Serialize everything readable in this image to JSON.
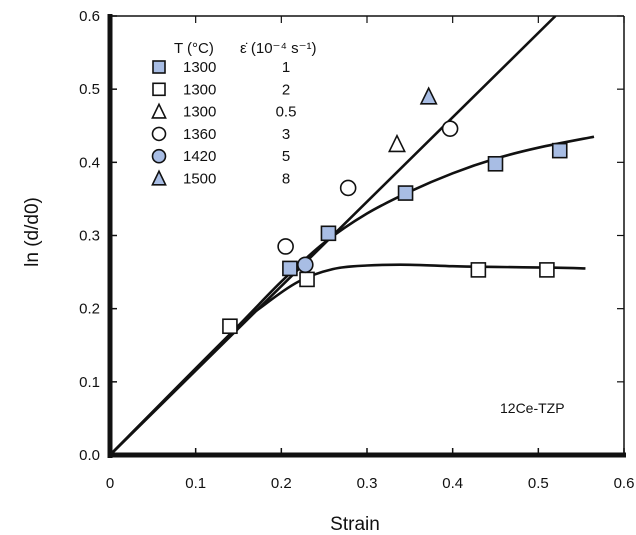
{
  "chart_data": {
    "type": "scatter",
    "xlabel": "Strain",
    "ylabel": "ln (d/d0)",
    "xlim": [
      0,
      0.6
    ],
    "ylim": [
      0,
      0.6
    ],
    "x_ticks": [
      "0",
      "0.1",
      "0.2",
      "0.3",
      "0.4",
      "0.5",
      "0.6"
    ],
    "y_ticks": [
      "0.0",
      "0.1",
      "0.2",
      "0.3",
      "0.4",
      "0.5",
      "0.6"
    ],
    "grid": false,
    "legend": {
      "position": "top-left",
      "header_temp": "T (°C)",
      "header_rate": "ε̇ (10⁻⁴ s⁻¹)"
    },
    "annotation": "12Ce-TZP",
    "series": [
      {
        "marker": "square",
        "filled": true,
        "temp": "1300",
        "rate": "1",
        "points": [
          [
            0.21,
            0.255
          ],
          [
            0.255,
            0.303
          ],
          [
            0.345,
            0.358
          ],
          [
            0.45,
            0.398
          ],
          [
            0.525,
            0.416
          ]
        ]
      },
      {
        "marker": "square",
        "filled": false,
        "temp": "1300",
        "rate": "2",
        "points": [
          [
            0.14,
            0.176
          ],
          [
            0.23,
            0.24
          ],
          [
            0.43,
            0.253
          ],
          [
            0.51,
            0.253
          ]
        ]
      },
      {
        "marker": "triangle",
        "filled": false,
        "temp": "1300",
        "rate": "0.5",
        "points": [
          [
            0.335,
            0.425
          ]
        ]
      },
      {
        "marker": "circle",
        "filled": false,
        "temp": "1360",
        "rate": "3",
        "points": [
          [
            0.205,
            0.285
          ],
          [
            0.278,
            0.365
          ],
          [
            0.397,
            0.446
          ]
        ]
      },
      {
        "marker": "circle",
        "filled": true,
        "temp": "1420",
        "rate": "5",
        "points": [
          [
            0.228,
            0.26
          ]
        ]
      },
      {
        "marker": "triangle",
        "filled": true,
        "temp": "1500",
        "rate": "8",
        "points": [
          [
            0.372,
            0.49
          ]
        ]
      }
    ],
    "lines": [
      {
        "name": "ideal",
        "points": [
          [
            0,
            0
          ],
          [
            0.52,
            0.6
          ]
        ]
      },
      {
        "name": "upper-fit",
        "points": [
          [
            0,
            0
          ],
          [
            0.14,
            0.165
          ],
          [
            0.2,
            0.237
          ],
          [
            0.25,
            0.29
          ],
          [
            0.3,
            0.33
          ],
          [
            0.35,
            0.36
          ],
          [
            0.4,
            0.385
          ],
          [
            0.45,
            0.405
          ],
          [
            0.5,
            0.42
          ],
          [
            0.565,
            0.435
          ]
        ]
      },
      {
        "name": "lower-fit",
        "points": [
          [
            0,
            0
          ],
          [
            0.14,
            0.165
          ],
          [
            0.18,
            0.205
          ],
          [
            0.22,
            0.237
          ],
          [
            0.26,
            0.254
          ],
          [
            0.3,
            0.259
          ],
          [
            0.35,
            0.26
          ],
          [
            0.4,
            0.258
          ],
          [
            0.45,
            0.257
          ],
          [
            0.52,
            0.256
          ],
          [
            0.555,
            0.255
          ]
        ]
      }
    ],
    "colors": {
      "filled_marker": "#a8bde4",
      "hollow_marker": "#ffffff",
      "stroke": "#111111",
      "axis": "#111111"
    }
  }
}
